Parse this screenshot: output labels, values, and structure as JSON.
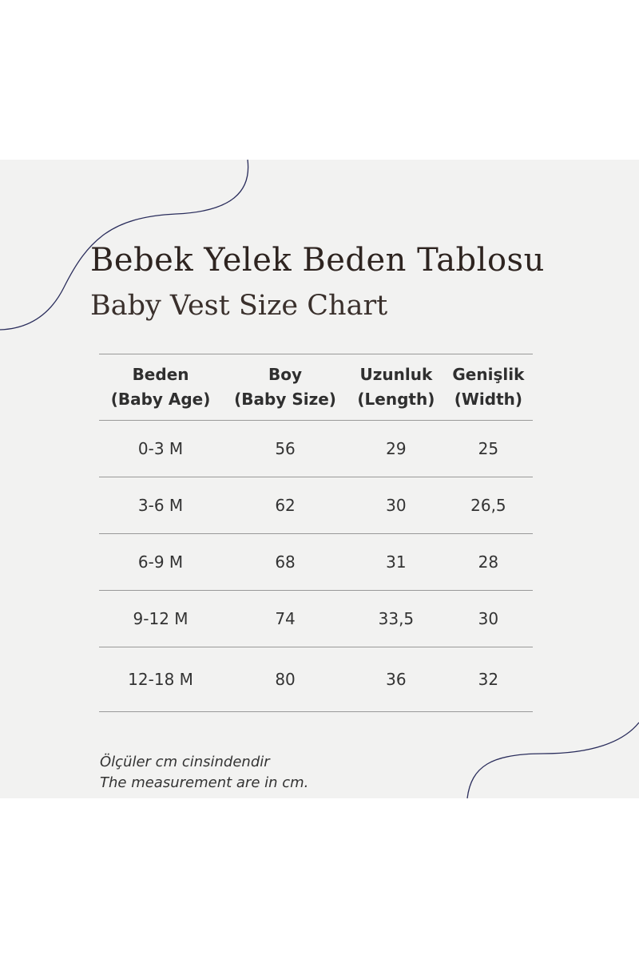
{
  "title": "Bebek Yelek Beden Tablosu",
  "subtitle": "Baby Vest Size Chart",
  "table": {
    "headers": [
      [
        "Beden",
        "(Baby Age)"
      ],
      [
        "Boy",
        "(Baby Size)"
      ],
      [
        "Uzunluk",
        "(Length)"
      ],
      [
        "Genişlik",
        "(Width)"
      ]
    ],
    "rows": [
      [
        "0-3 M",
        "56",
        "29",
        "25"
      ],
      [
        "3-6 M",
        "62",
        "30",
        "26,5"
      ],
      [
        "6-9 M",
        "68",
        "31",
        "28"
      ],
      [
        "9-12 M",
        "74",
        "33,5",
        "30"
      ],
      [
        "12-18 M",
        "80",
        "36",
        "32"
      ]
    ]
  },
  "notes": [
    "Ölçüler cm cinsindendir",
    "The measurement are in cm."
  ],
  "colors": {
    "background": "#f2f2f1",
    "curve": "#2a2d5c",
    "title": "#2e2420"
  }
}
